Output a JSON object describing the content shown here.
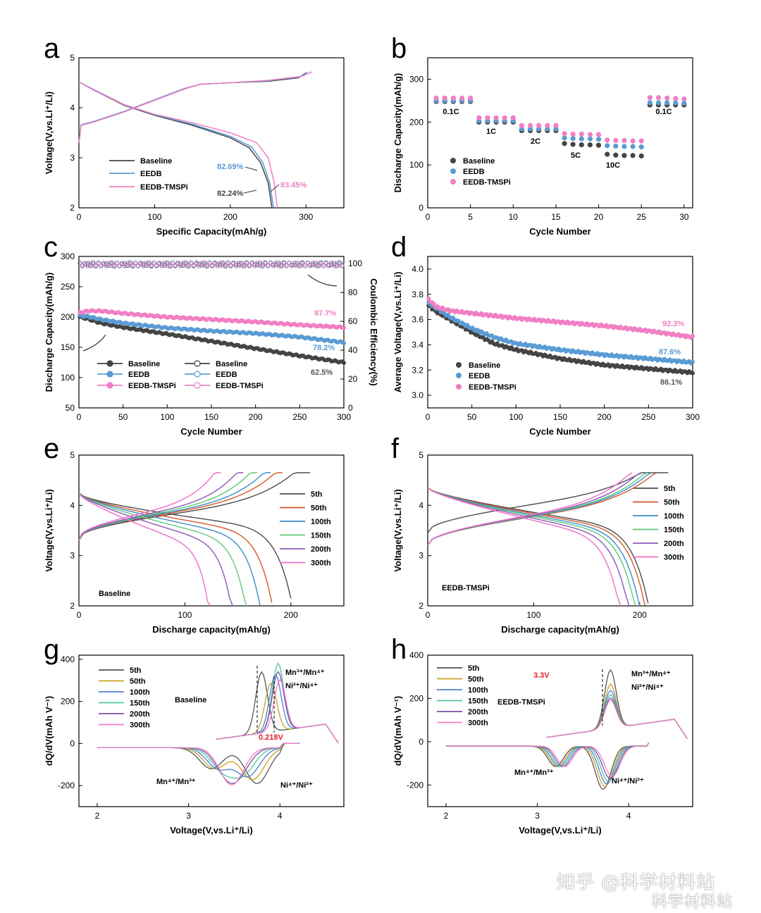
{
  "colors": {
    "baseline": "#444444",
    "eedb": "#5a9bd4",
    "tmspi": "#f07fc4",
    "c5": "#4d4d4d",
    "c50": "#d4572a",
    "c100": "#3a8dc7",
    "c150": "#5cc878",
    "c200": "#8e57b8",
    "c300": "#f06ec8",
    "g5": "#555555",
    "g50": "#c9a21d",
    "g100": "#4e7fd6",
    "g150": "#4fc6a0",
    "g200": "#7a4fa8",
    "g300": "#f07fc4",
    "red": "#e02020"
  },
  "watermark": {
    "line1": "知乎 @科学材料站",
    "line2": "科学材料站"
  },
  "chart_data": [
    {
      "panel": "a",
      "type": "line",
      "xlabel": "Specific Capacity(mAh/g)",
      "ylabel": "Voltage(V,vs.Li⁺/Li)",
      "xlim": [
        0,
        350
      ],
      "ylim": [
        2,
        5
      ],
      "xticks": [
        0,
        100,
        200,
        300
      ],
      "yticks": [
        2,
        3,
        4,
        5
      ],
      "series": [
        {
          "name": "Baseline",
          "charge": [
            [
              0,
              3.3
            ],
            [
              3,
              3.65
            ],
            [
              20,
              3.72
            ],
            [
              60,
              3.92
            ],
            [
              100,
              4.15
            ],
            [
              140,
              4.38
            ],
            [
              160,
              4.47
            ],
            [
              200,
              4.5
            ],
            [
              250,
              4.53
            ],
            [
              290,
              4.6
            ],
            [
              300,
              4.7
            ]
          ],
          "discharge": [
            [
              0,
              4.52
            ],
            [
              20,
              4.35
            ],
            [
              60,
              4.05
            ],
            [
              100,
              3.85
            ],
            [
              150,
              3.65
            ],
            [
              200,
              3.4
            ],
            [
              225,
              3.2
            ],
            [
              240,
              2.9
            ],
            [
              250,
              2.5
            ],
            [
              255,
              2.0
            ]
          ]
        },
        {
          "name": "EEDB",
          "charge": [
            [
              0,
              3.3
            ],
            [
              3,
              3.66
            ],
            [
              20,
              3.73
            ],
            [
              60,
              3.93
            ],
            [
              100,
              4.16
            ],
            [
              140,
              4.39
            ],
            [
              160,
              4.47
            ],
            [
              200,
              4.5
            ],
            [
              250,
              4.54
            ],
            [
              292,
              4.62
            ],
            [
              302,
              4.71
            ]
          ],
          "discharge": [
            [
              0,
              4.52
            ],
            [
              20,
              4.36
            ],
            [
              60,
              4.06
            ],
            [
              100,
              3.86
            ],
            [
              150,
              3.67
            ],
            [
              200,
              3.43
            ],
            [
              228,
              3.22
            ],
            [
              243,
              2.9
            ],
            [
              252,
              2.5
            ],
            [
              257,
              2.0
            ]
          ]
        },
        {
          "name": "EEDB-TMSPi",
          "charge": [
            [
              0,
              3.3
            ],
            [
              3,
              3.65
            ],
            [
              20,
              3.72
            ],
            [
              60,
              3.92
            ],
            [
              100,
              4.15
            ],
            [
              140,
              4.38
            ],
            [
              160,
              4.47
            ],
            [
              200,
              4.5
            ],
            [
              250,
              4.55
            ],
            [
              295,
              4.63
            ],
            [
              308,
              4.72
            ]
          ],
          "discharge": [
            [
              0,
              4.52
            ],
            [
              20,
              4.35
            ],
            [
              60,
              4.06
            ],
            [
              100,
              3.87
            ],
            [
              150,
              3.7
            ],
            [
              200,
              3.5
            ],
            [
              235,
              3.3
            ],
            [
              250,
              3.0
            ],
            [
              258,
              2.5
            ],
            [
              262,
              2.0
            ]
          ]
        }
      ],
      "annotations": {
        "baseline": "82.24%",
        "eedb": "82.69%",
        "tmspi": "83.45%"
      }
    },
    {
      "panel": "b",
      "type": "scatter",
      "xlabel": "Cycle Number",
      "ylabel": "Discharge Capacity(mAh/g)",
      "xlim": [
        0,
        31
      ],
      "ylim": [
        0,
        350
      ],
      "xticks": [
        0,
        5,
        10,
        15,
        20,
        25,
        30
      ],
      "yticks": [
        0,
        100,
        200,
        300
      ],
      "rates": [
        "0.1C",
        "1C",
        "2C",
        "5C",
        "10C",
        "0.1C"
      ],
      "series": [
        {
          "name": "Baseline",
          "values": [
            248,
            248,
            248,
            248,
            248,
            200,
            200,
            200,
            200,
            200,
            180,
            180,
            180,
            180,
            180,
            150,
            148,
            147,
            147,
            146,
            125,
            123,
            122,
            122,
            121,
            240,
            240,
            240,
            240,
            240
          ]
        },
        {
          "name": "EEDB",
          "values": [
            250,
            250,
            250,
            250,
            250,
            203,
            203,
            203,
            203,
            203,
            184,
            184,
            184,
            184,
            184,
            163,
            162,
            161,
            161,
            160,
            145,
            144,
            143,
            143,
            142,
            245,
            245,
            245,
            245,
            244
          ]
        },
        {
          "name": "EEDB-TMSPi",
          "values": [
            256,
            256,
            256,
            256,
            256,
            210,
            210,
            210,
            210,
            210,
            192,
            192,
            192,
            192,
            192,
            173,
            172,
            172,
            171,
            171,
            158,
            157,
            157,
            156,
            156,
            257,
            257,
            256,
            255,
            254
          ]
        }
      ]
    },
    {
      "panel": "c",
      "type": "scatter",
      "xlabel": "Cycle Number",
      "ylabel": "Discharge Capacity(mAh/g)",
      "y2label": "Coulombic Efficiency(%)",
      "xlim": [
        0,
        300
      ],
      "ylim": [
        50,
        300
      ],
      "y2lim": [
        0,
        105
      ],
      "xticks": [
        0,
        50,
        100,
        150,
        200,
        250,
        300
      ],
      "yticks": [
        50,
        100,
        150,
        200,
        250,
        300
      ],
      "y2ticks": [
        0,
        20,
        40,
        60,
        80,
        100
      ],
      "series": [
        {
          "name": "Baseline",
          "capacity": [
            [
              1,
              200
            ],
            [
              10,
              197
            ],
            [
              25,
              190
            ],
            [
              50,
              183
            ],
            [
              100,
              172
            ],
            [
              150,
              160
            ],
            [
              200,
              148
            ],
            [
              250,
              136
            ],
            [
              300,
              125
            ]
          ]
        },
        {
          "name": "EEDB",
          "capacity": [
            [
              1,
              202
            ],
            [
              10,
              201
            ],
            [
              25,
              196
            ],
            [
              50,
              190
            ],
            [
              100,
              182
            ],
            [
              150,
              177
            ],
            [
              200,
              173
            ],
            [
              250,
              167
            ],
            [
              300,
              158
            ]
          ]
        },
        {
          "name": "EEDB-TMSPi",
          "capacity": [
            [
              1,
              207
            ],
            [
              10,
              210
            ],
            [
              25,
              210
            ],
            [
              50,
              206
            ],
            [
              100,
              200
            ],
            [
              150,
              196
            ],
            [
              200,
              192
            ],
            [
              250,
              187
            ],
            [
              300,
              183
            ]
          ]
        }
      ],
      "ce_series_names": [
        "Baseline",
        "EEDB",
        "EEDB-TMSPi"
      ],
      "ce_value": 99.5,
      "retention": {
        "baseline": "62.5%",
        "eedb": "78.2%",
        "tmspi": "87.7%"
      }
    },
    {
      "panel": "d",
      "type": "scatter",
      "xlabel": "Cycle Number",
      "ylabel": "Average Voltage(V,vs.Li⁺/Li)",
      "xlim": [
        0,
        300
      ],
      "ylim": [
        2.9,
        4.1
      ],
      "xticks": [
        0,
        50,
        100,
        150,
        200,
        250,
        300
      ],
      "yticks": [
        3.0,
        3.2,
        3.4,
        3.6,
        3.8,
        4.0
      ],
      "series": [
        {
          "name": "Baseline",
          "values": [
            [
              1,
              3.71
            ],
            [
              10,
              3.66
            ],
            [
              25,
              3.6
            ],
            [
              50,
              3.5
            ],
            [
              75,
              3.41
            ],
            [
              100,
              3.36
            ],
            [
              150,
              3.29
            ],
            [
              200,
              3.24
            ],
            [
              250,
              3.21
            ],
            [
              300,
              3.18
            ]
          ]
        },
        {
          "name": "EEDB",
          "values": [
            [
              1,
              3.73
            ],
            [
              10,
              3.69
            ],
            [
              25,
              3.62
            ],
            [
              50,
              3.53
            ],
            [
              75,
              3.46
            ],
            [
              100,
              3.41
            ],
            [
              150,
              3.36
            ],
            [
              200,
              3.32
            ],
            [
              250,
              3.29
            ],
            [
              300,
              3.26
            ]
          ]
        },
        {
          "name": "EEDB-TMSPi",
          "values": [
            [
              1,
              3.76
            ],
            [
              10,
              3.7
            ],
            [
              25,
              3.67
            ],
            [
              50,
              3.65
            ],
            [
              100,
              3.61
            ],
            [
              150,
              3.58
            ],
            [
              200,
              3.55
            ],
            [
              250,
              3.51
            ],
            [
              300,
              3.46
            ]
          ]
        }
      ],
      "retention": {
        "baseline": "86.1%",
        "eedb": "87.6%",
        "tmspi": "92.3%"
      }
    },
    {
      "panel": "e",
      "type": "line",
      "xlabel": "Discharge capacity(mAh/g)",
      "ylabel": "Voltage(V,vs.Li⁺/Li)",
      "xlim": [
        0,
        250
      ],
      "ylim": [
        2,
        5
      ],
      "xticks": [
        0,
        100,
        200
      ],
      "yticks": [
        2,
        3,
        4,
        5
      ],
      "label": "Baseline",
      "series": [
        {
          "name": "5th",
          "cap": 200
        },
        {
          "name": "50th",
          "cap": 182
        },
        {
          "name": "100th",
          "cap": 171
        },
        {
          "name": "150th",
          "cap": 158
        },
        {
          "name": "200th",
          "cap": 145
        },
        {
          "name": "300th",
          "cap": 124
        }
      ]
    },
    {
      "panel": "f",
      "type": "line",
      "xlabel": "Discharge capacity(mAh/g)",
      "ylabel": "Voltage(V,vs.Li⁺/Li)",
      "xlim": [
        0,
        250
      ],
      "ylim": [
        2,
        5
      ],
      "xticks": [
        0,
        100,
        200
      ],
      "yticks": [
        2,
        3,
        4,
        5
      ],
      "label": "EEDB-TMSPi",
      "series": [
        {
          "name": "5th",
          "cap": 208
        },
        {
          "name": "50th",
          "cap": 205
        },
        {
          "name": "100th",
          "cap": 200
        },
        {
          "name": "150th",
          "cap": 196
        },
        {
          "name": "200th",
          "cap": 190
        },
        {
          "name": "300th",
          "cap": 182
        }
      ]
    },
    {
      "panel": "g",
      "type": "line",
      "xlabel": "Voltage(V,vs.Li⁺/Li)",
      "ylabel": "dQ/dV(mAh V⁻¹)",
      "xlim": [
        1.8,
        4.7
      ],
      "ylim": [
        -300,
        420
      ],
      "xticks": [
        2,
        3,
        4
      ],
      "yticks": [
        -200,
        0,
        200,
        400
      ],
      "label": "Baseline",
      "series_names": [
        "5th",
        "50th",
        "100th",
        "150th",
        "200th",
        "300th"
      ],
      "charge_peaks": [
        [
          3.8,
          350
        ],
        [
          3.9,
          290
        ],
        [
          3.95,
          330
        ],
        [
          3.98,
          380
        ],
        [
          3.98,
          340
        ],
        [
          4.0,
          300
        ]
      ],
      "annotations": {
        "upper": "Mn³⁺/Mn⁴⁺",
        "upper2": "Ni²⁺/Ni⁴⁺",
        "lower1": "Mn⁴⁺/Mn³⁺",
        "lower2": "Ni⁴⁺/Ni²⁺",
        "shift": "0.218V"
      }
    },
    {
      "panel": "h",
      "type": "line",
      "xlabel": "Voltage(V,vs.Li⁺/Li)",
      "ylabel": "dQ/dV(mAh V⁻¹)",
      "xlim": [
        1.8,
        4.7
      ],
      "ylim": [
        -300,
        400
      ],
      "xticks": [
        2,
        3,
        4
      ],
      "yticks": [
        -200,
        0,
        200,
        400
      ],
      "label": "EEDB-TMSPi",
      "series_names": [
        "5th",
        "50th",
        "100th",
        "150th",
        "200th",
        "300th"
      ],
      "charge_peaks": [
        [
          3.8,
          330
        ],
        [
          3.8,
          265
        ],
        [
          3.8,
          235
        ],
        [
          3.8,
          215
        ],
        [
          3.8,
          200
        ],
        [
          3.8,
          190
        ]
      ],
      "annotations": {
        "upper": "Mn³⁺/Mn⁴⁺",
        "upper2": "Ni²⁺/Ni⁴⁺",
        "lower1": "Mn⁴⁺/Mn³⁺",
        "lower2": "Ni⁴⁺/Ni²⁺",
        "marker": "3.3V"
      }
    }
  ]
}
